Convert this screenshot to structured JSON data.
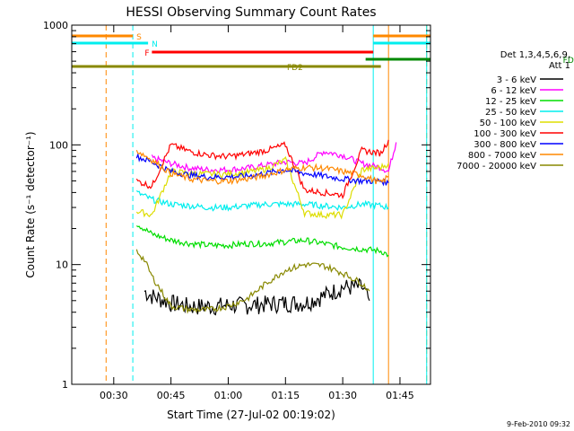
{
  "chart_data": {
    "type": "line",
    "title": "HESSI Observing Summary Count Rates",
    "xlabel": "Start Time (27-Jul-02 00:19:02)",
    "ylabel": "Count Rate (s⁻¹ detector⁻¹)",
    "y_scale": "log",
    "xlim": [
      "00:19",
      "01:53"
    ],
    "ylim": [
      1,
      1000
    ],
    "x_ticks": [
      "00:30",
      "00:45",
      "01:00",
      "01:15",
      "01:30",
      "01:45"
    ],
    "y_ticks": [
      "1",
      "10",
      "100",
      "1000"
    ],
    "legend_position": "right",
    "legend_header": [
      "Det 1,3,4,5,6,9,",
      "Att 1"
    ],
    "footer": "9-Feb-2010 09:32",
    "series": [
      {
        "name": "3 - 6 keV",
        "color": "#000000",
        "x": [
          "00:38",
          "00:40",
          "00:45",
          "00:50",
          "00:55",
          "01:00",
          "01:05",
          "01:10",
          "01:15",
          "01:20",
          "01:25",
          "01:30",
          "01:35",
          "01:37"
        ],
        "y": [
          6,
          5.5,
          4.8,
          4.5,
          4.5,
          4.6,
          4.6,
          4.7,
          4.8,
          4.8,
          5.5,
          6.5,
          6.5,
          5
        ]
      },
      {
        "name": "6 - 12 keV",
        "color": "#ff00ff",
        "x": [
          "00:40",
          "00:45",
          "00:50",
          "00:55",
          "01:00",
          "01:05",
          "01:10",
          "01:15",
          "01:20",
          "01:25",
          "01:30",
          "01:35",
          "01:40",
          "01:42",
          "01:44"
        ],
        "y": [
          78,
          70,
          64,
          62,
          62,
          64,
          68,
          72,
          70,
          88,
          82,
          70,
          65,
          60,
          105
        ]
      },
      {
        "name": "12 - 25 keV",
        "color": "#00dd00",
        "x": [
          "00:36",
          "00:40",
          "00:45",
          "00:50",
          "00:55",
          "01:00",
          "01:05",
          "01:10",
          "01:15",
          "01:20",
          "01:25",
          "01:30",
          "01:35",
          "01:40",
          "01:42"
        ],
        "y": [
          22,
          18,
          16,
          15,
          14.5,
          14.5,
          15,
          15,
          15.5,
          16,
          15,
          14,
          13.5,
          13,
          12
        ]
      },
      {
        "name": "25 - 50 keV",
        "color": "#00eeee",
        "x": [
          "00:36",
          "00:40",
          "00:45",
          "00:50",
          "00:55",
          "01:00",
          "01:05",
          "01:10",
          "01:15",
          "01:20",
          "01:25",
          "01:30",
          "01:35",
          "01:40",
          "01:42"
        ],
        "y": [
          40,
          35,
          32,
          31,
          30,
          30,
          31,
          32,
          32,
          32,
          31,
          30,
          32,
          31,
          30
        ]
      },
      {
        "name": "50 - 100 keV",
        "color": "#dddd00",
        "x": [
          "00:36",
          "00:40",
          "00:45",
          "00:50",
          "00:55",
          "01:00",
          "01:05",
          "01:10",
          "01:15",
          "01:20",
          "01:25",
          "01:30",
          "01:35",
          "01:40",
          "01:42"
        ],
        "y": [
          28,
          26,
          60,
          58,
          57,
          57,
          59,
          63,
          75,
          27,
          26,
          26,
          62,
          65,
          70
        ]
      },
      {
        "name": "100 - 300 keV",
        "color": "#ff0000",
        "x": [
          "00:36",
          "00:40",
          "00:45",
          "00:50",
          "00:55",
          "01:00",
          "01:05",
          "01:10",
          "01:15",
          "01:20",
          "01:25",
          "01:30",
          "01:35",
          "01:40",
          "01:42"
        ],
        "y": [
          50,
          45,
          100,
          88,
          82,
          80,
          84,
          90,
          100,
          42,
          40,
          38,
          90,
          85,
          110
        ]
      },
      {
        "name": "300 - 800 keV",
        "color": "#0000ff",
        "x": [
          "00:36",
          "00:40",
          "00:45",
          "00:50",
          "00:55",
          "01:00",
          "01:05",
          "01:10",
          "01:15",
          "01:20",
          "01:25",
          "01:30",
          "01:35",
          "01:40",
          "01:42"
        ],
        "y": [
          80,
          72,
          60,
          56,
          54,
          54,
          55,
          58,
          62,
          58,
          55,
          52,
          50,
          50,
          48
        ]
      },
      {
        "name": "800 - 7000 keV",
        "color": "#ff8800",
        "x": [
          "00:36",
          "00:40",
          "00:45",
          "00:50",
          "00:55",
          "01:00",
          "01:05",
          "01:10",
          "01:15",
          "01:20",
          "01:25",
          "01:30",
          "01:35",
          "01:40",
          "01:42"
        ],
        "y": [
          90,
          75,
          58,
          52,
          50,
          50,
          52,
          56,
          62,
          65,
          64,
          60,
          56,
          48,
          55
        ]
      },
      {
        "name": "7000 - 20000 keV",
        "color": "#888800",
        "x": [
          "00:36",
          "00:38",
          "00:40",
          "00:45",
          "00:50",
          "00:55",
          "01:00",
          "01:05",
          "01:10",
          "01:15",
          "01:20",
          "01:25",
          "01:30",
          "01:35",
          "01:37"
        ],
        "y": [
          13,
          11,
          8,
          4.5,
          4.2,
          4.2,
          4.5,
          5.2,
          7,
          9,
          10,
          9.8,
          8.5,
          7,
          6
        ]
      }
    ],
    "flag_bars": [
      {
        "label": "S",
        "color": "#ff8800",
        "segments": [
          [
            "00:19",
            "00:35"
          ],
          [
            "01:38",
            "01:53"
          ]
        ]
      },
      {
        "label": "N",
        "color": "#00eeee",
        "segments": [
          [
            "00:19",
            "00:39"
          ],
          [
            "01:38",
            "01:53"
          ]
        ]
      },
      {
        "label": "F",
        "color": "#ff0000",
        "segments": [
          [
            "00:40",
            "01:38"
          ]
        ]
      },
      {
        "label": "FD1",
        "color": "#008800",
        "segments": [
          [
            "01:36",
            "01:53"
          ]
        ]
      },
      {
        "label": "FD2",
        "color": "#888800",
        "segments": [
          [
            "00:19",
            "01:40"
          ]
        ]
      }
    ],
    "vertical_markers": [
      {
        "time": "00:28",
        "color": "#ff8800",
        "style": "dashed"
      },
      {
        "time": "00:35",
        "color": "#00eeee",
        "style": "dashed"
      },
      {
        "time": "01:38",
        "color": "#00eeee",
        "style": "solid"
      },
      {
        "time": "01:42",
        "color": "#ff8800",
        "style": "solid"
      },
      {
        "time": "01:52",
        "color": "#ff8800",
        "style": "dashed"
      },
      {
        "time": "01:52",
        "color": "#00eeee",
        "style": "solid"
      }
    ]
  }
}
